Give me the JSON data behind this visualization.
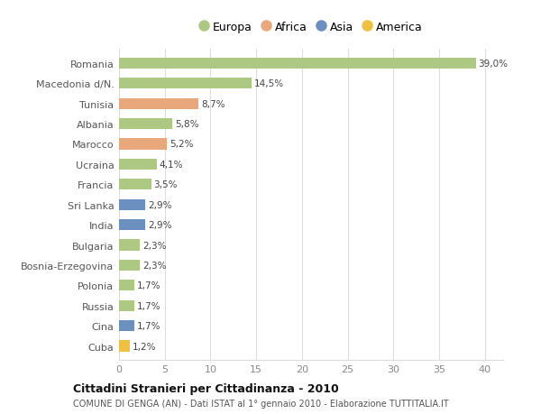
{
  "countries": [
    "Romania",
    "Macedonia d/N.",
    "Tunisia",
    "Albania",
    "Marocco",
    "Ucraina",
    "Francia",
    "Sri Lanka",
    "India",
    "Bulgaria",
    "Bosnia-Erzegovina",
    "Polonia",
    "Russia",
    "Cina",
    "Cuba"
  ],
  "values": [
    39.0,
    14.5,
    8.7,
    5.8,
    5.2,
    4.1,
    3.5,
    2.9,
    2.9,
    2.3,
    2.3,
    1.7,
    1.7,
    1.7,
    1.2
  ],
  "labels": [
    "39,0%",
    "14,5%",
    "8,7%",
    "5,8%",
    "5,2%",
    "4,1%",
    "3,5%",
    "2,9%",
    "2,9%",
    "2,3%",
    "2,3%",
    "1,7%",
    "1,7%",
    "1,7%",
    "1,2%"
  ],
  "continents": [
    "Europa",
    "Europa",
    "Africa",
    "Europa",
    "Africa",
    "Europa",
    "Europa",
    "Asia",
    "Asia",
    "Europa",
    "Europa",
    "Europa",
    "Europa",
    "Asia",
    "America"
  ],
  "colors": {
    "Europa": "#adc882",
    "Africa": "#e8a87c",
    "Asia": "#6b8fbf",
    "America": "#f0c040"
  },
  "title": "Cittadini Stranieri per Cittadinanza - 2010",
  "subtitle": "COMUNE DI GENGA (AN) - Dati ISTAT al 1° gennaio 2010 - Elaborazione TUTTITALIA.IT",
  "xlim": [
    0,
    42
  ],
  "xticks": [
    0,
    5,
    10,
    15,
    20,
    25,
    30,
    35,
    40
  ],
  "background_color": "#ffffff",
  "grid_color": "#dddddd",
  "bar_height": 0.55
}
